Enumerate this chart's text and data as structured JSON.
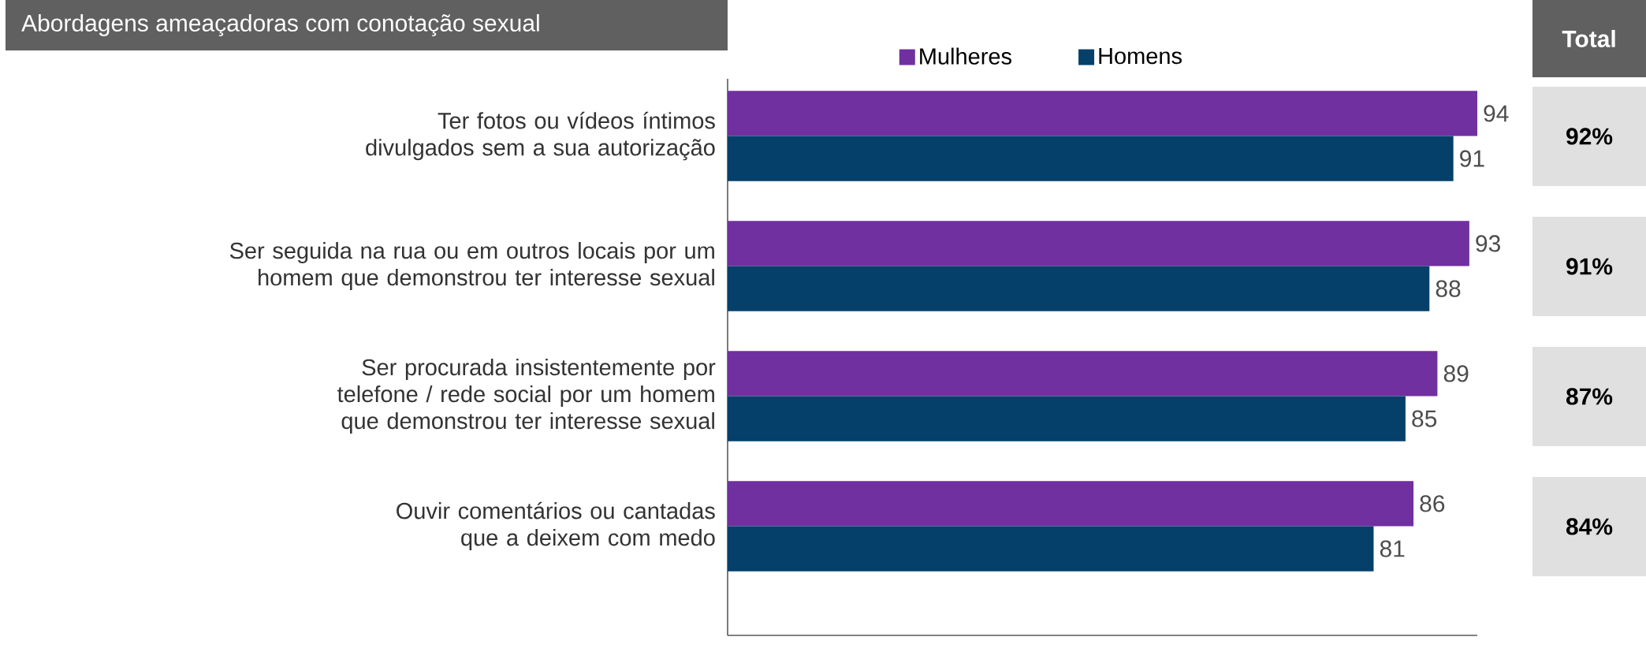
{
  "chart_data": {
    "type": "bar",
    "orientation": "horizontal",
    "title": "Abordagens ameaçadoras com conotação sexual",
    "categories": [
      "Ter fotos ou vídeos íntimos divulgados sem a sua autorização",
      "Ser seguida na rua ou em outros locais por um homem que demonstrou ter interesse sexual",
      "Ser procurada insistentemente por telefone / rede social por um homem que demonstrou ter interesse sexual",
      "Ouvir comentários ou cantadas que a deixem com medo"
    ],
    "series": [
      {
        "name": "Mulheres",
        "color": "#7030a0",
        "values": [
          94,
          93,
          89,
          86
        ]
      },
      {
        "name": "Homens",
        "color": "#05406b",
        "values": [
          91,
          88,
          85,
          81
        ]
      }
    ],
    "tick_labels": "y",
    "data_labels": true,
    "legend": "top",
    "annotations": [
      "Total",
      "92%",
      "91%",
      "87%",
      "84%"
    ]
  }
}
